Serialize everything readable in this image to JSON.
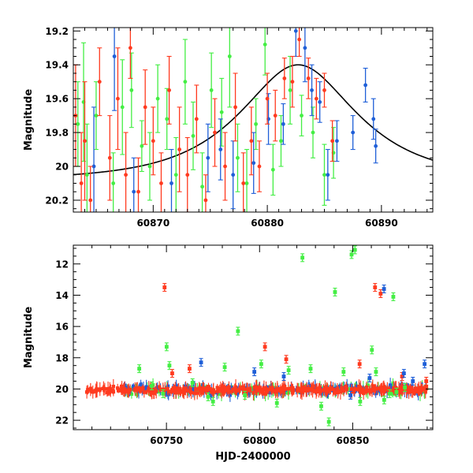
{
  "colors": {
    "green": "#44ee44",
    "red": "#ff3a1f",
    "blue": "#1f5fd8",
    "model": "#000000"
  },
  "chart_data": [
    {
      "type": "scatter",
      "xlabel": "",
      "ylabel": "Magnitude",
      "xlim": [
        60863,
        60894.5
      ],
      "ylim": [
        20.27,
        19.18
      ],
      "y_inverted": true,
      "xticks": [
        60870,
        60880,
        60890
      ],
      "yticks": [
        19.2,
        19.4,
        19.6,
        19.8,
        20,
        20.2
      ],
      "x_minor_step": 1,
      "y_minor_step": 0.05,
      "model_curve": {
        "type": "single-lens microlensing",
        "peak_x": 60882.7,
        "peak_mag": 19.4,
        "baseline_mag": 20.08,
        "tE": 8
      },
      "series": [
        {
          "color": "green",
          "points": [
            [
              60863.4,
              19.75,
              0.25
            ],
            [
              60863.9,
              19.62,
              0.35
            ],
            [
              60864.2,
              20.05,
              0.3
            ],
            [
              60865.0,
              19.7,
              0.2
            ],
            [
              60866.5,
              20.1,
              0.18
            ],
            [
              60867.3,
              19.65,
              0.28
            ],
            [
              60868.1,
              19.55,
              0.22
            ],
            [
              60869.0,
              19.88,
              0.15
            ],
            [
              60869.7,
              20.0,
              0.2
            ],
            [
              60870.4,
              19.6,
              0.2
            ],
            [
              60871.2,
              19.72,
              0.18
            ],
            [
              60872.0,
              20.05,
              0.22
            ],
            [
              60872.8,
              19.5,
              0.25
            ],
            [
              60873.5,
              19.82,
              0.2
            ],
            [
              60874.3,
              20.12,
              0.2
            ],
            [
              60875.1,
              19.55,
              0.22
            ],
            [
              60876.0,
              19.68,
              0.2
            ],
            [
              60876.7,
              19.35,
              0.3
            ],
            [
              60877.4,
              19.95,
              0.2
            ],
            [
              60878.2,
              20.1,
              0.2
            ],
            [
              60879.0,
              19.75,
              0.15
            ],
            [
              60879.8,
              19.28,
              0.18
            ],
            [
              60880.5,
              20.02,
              0.15
            ],
            [
              60881.2,
              19.85,
              0.15
            ],
            [
              60882.0,
              19.55,
              0.2
            ],
            [
              60883.0,
              19.7,
              0.12
            ],
            [
              60884.0,
              19.8,
              0.15
            ],
            [
              60885.0,
              20.05,
              0.18
            ],
            [
              60885.8,
              19.92,
              0.15
            ]
          ]
        },
        {
          "color": "blue",
          "points": [
            [
              60864.8,
              20.0,
              0.35
            ],
            [
              60866.6,
              19.35,
              0.32
            ],
            [
              60868.3,
              20.15,
              0.2
            ],
            [
              60871.6,
              20.1,
              0.2
            ],
            [
              60874.8,
              19.95,
              0.2
            ],
            [
              60875.9,
              19.9,
              0.18
            ],
            [
              60877.0,
              20.05,
              0.2
            ],
            [
              60878.8,
              19.98,
              0.18
            ],
            [
              60880.1,
              19.72,
              0.15
            ],
            [
              60881.4,
              19.75,
              0.12
            ],
            [
              60882.5,
              19.2,
              0.15
            ],
            [
              60883.3,
              19.3,
              0.2
            ],
            [
              60883.9,
              19.55,
              0.15
            ],
            [
              60884.6,
              19.62,
              0.12
            ],
            [
              60885.3,
              20.05,
              0.15
            ],
            [
              60886.1,
              19.85,
              0.12
            ],
            [
              60887.5,
              19.8,
              0.1
            ],
            [
              60888.6,
              19.52,
              0.1
            ],
            [
              60889.3,
              19.72,
              0.12
            ],
            [
              60889.5,
              19.88,
              0.1
            ]
          ]
        },
        {
          "color": "red",
          "points": [
            [
              60863.2,
              19.7,
              0.3
            ],
            [
              60863.7,
              20.1,
              0.3
            ],
            [
              60864.0,
              19.85,
              0.35
            ],
            [
              60864.5,
              20.2,
              0.2
            ],
            [
              60865.3,
              19.5,
              0.2
            ],
            [
              60866.2,
              19.95,
              0.25
            ],
            [
              60866.9,
              19.6,
              0.3
            ],
            [
              60867.6,
              20.05,
              0.25
            ],
            [
              60868.0,
              19.3,
              0.18
            ],
            [
              60868.7,
              20.15,
              0.2
            ],
            [
              60869.3,
              19.65,
              0.22
            ],
            [
              60870.0,
              19.85,
              0.2
            ],
            [
              60870.7,
              20.1,
              0.18
            ],
            [
              60871.4,
              19.55,
              0.2
            ],
            [
              60872.3,
              19.9,
              0.25
            ],
            [
              60873.0,
              20.05,
              0.22
            ],
            [
              60873.8,
              19.72,
              0.2
            ],
            [
              60874.6,
              20.2,
              0.15
            ],
            [
              60875.4,
              19.8,
              0.2
            ],
            [
              60876.3,
              20.0,
              0.2
            ],
            [
              60877.2,
              19.65,
              0.2
            ],
            [
              60877.9,
              20.1,
              0.18
            ],
            [
              60878.6,
              19.85,
              0.2
            ],
            [
              60879.3,
              20.0,
              0.15
            ],
            [
              60880.0,
              19.6,
              0.15
            ],
            [
              60880.7,
              19.7,
              0.15
            ],
            [
              60881.5,
              19.48,
              0.12
            ],
            [
              60882.2,
              19.5,
              0.15
            ],
            [
              60882.8,
              19.25,
              0.1
            ],
            [
              60883.6,
              19.48,
              0.12
            ],
            [
              60884.3,
              19.6,
              0.12
            ],
            [
              60885.0,
              19.55,
              0.1
            ],
            [
              60885.7,
              19.85,
              0.12
            ]
          ]
        }
      ]
    },
    {
      "type": "scatter",
      "xlabel": "HJD-2400000",
      "ylabel": "Magnitude",
      "xlim": [
        60700,
        60893
      ],
      "ylim": [
        22.6,
        10.8
      ],
      "y_inverted": true,
      "xticks": [
        60750,
        60800,
        60850
      ],
      "yticks": [
        12,
        14,
        16,
        18,
        20,
        22
      ],
      "x_minor_step": 10,
      "y_minor_step": 0.5,
      "baseline": {
        "x_start": 60707,
        "x_end": 60890,
        "mag": 20.05,
        "scatter": 0.3
      },
      "series": [
        {
          "color": "green",
          "points": [
            [
              60735.4,
              18.7
            ],
            [
              60742.1,
              19.8
            ],
            [
              60748.2,
              20.3
            ],
            [
              60750.1,
              17.3
            ],
            [
              60751.6,
              18.5
            ],
            [
              60764.0,
              19.6
            ],
            [
              60772.4,
              20.5
            ],
            [
              60775.0,
              20.8
            ],
            [
              60781.3,
              18.6
            ],
            [
              60788.4,
              16.3
            ],
            [
              60792.1,
              20.4
            ],
            [
              60800.9,
              18.4
            ],
            [
              60809.3,
              20.9
            ],
            [
              60815.6,
              18.8
            ],
            [
              60823.0,
              11.6
            ],
            [
              60827.4,
              18.7
            ],
            [
              60833.1,
              21.1
            ],
            [
              60837.2,
              22.1
            ],
            [
              60840.5,
              13.8
            ],
            [
              60845.1,
              18.9
            ],
            [
              60849.4,
              11.4
            ],
            [
              60851.2,
              11.1
            ],
            [
              60854.0,
              20.8
            ],
            [
              60860.3,
              17.5
            ],
            [
              60862.5,
              18.9
            ],
            [
              60866.9,
              20.7
            ],
            [
              60869.8,
              20.3
            ],
            [
              60871.8,
              14.1
            ],
            [
              60873.5,
              20.2
            ],
            [
              60878.0,
              19.9
            ]
          ]
        },
        {
          "color": "red",
          "points": [
            [
              60749.0,
              13.5
            ],
            [
              60753.1,
              19.0
            ],
            [
              60762.4,
              18.7
            ],
            [
              60802.9,
              17.3
            ],
            [
              60814.3,
              18.1
            ],
            [
              60853.7,
              18.4
            ],
            [
              60862.0,
              13.5
            ],
            [
              60865.0,
              13.9
            ],
            [
              60876.5,
              19.2
            ],
            [
              60889.5,
              19.5
            ]
          ]
        },
        {
          "color": "blue",
          "points": [
            [
              60768.6,
              18.3
            ],
            [
              60797.2,
              18.9
            ],
            [
              60813.0,
              19.2
            ],
            [
              60848.8,
              20.4
            ],
            [
              60859.1,
              19.3
            ],
            [
              60866.8,
              13.6
            ],
            [
              60877.5,
              19.0
            ],
            [
              60882.3,
              19.5
            ],
            [
              60888.6,
              18.4
            ]
          ]
        }
      ]
    }
  ]
}
